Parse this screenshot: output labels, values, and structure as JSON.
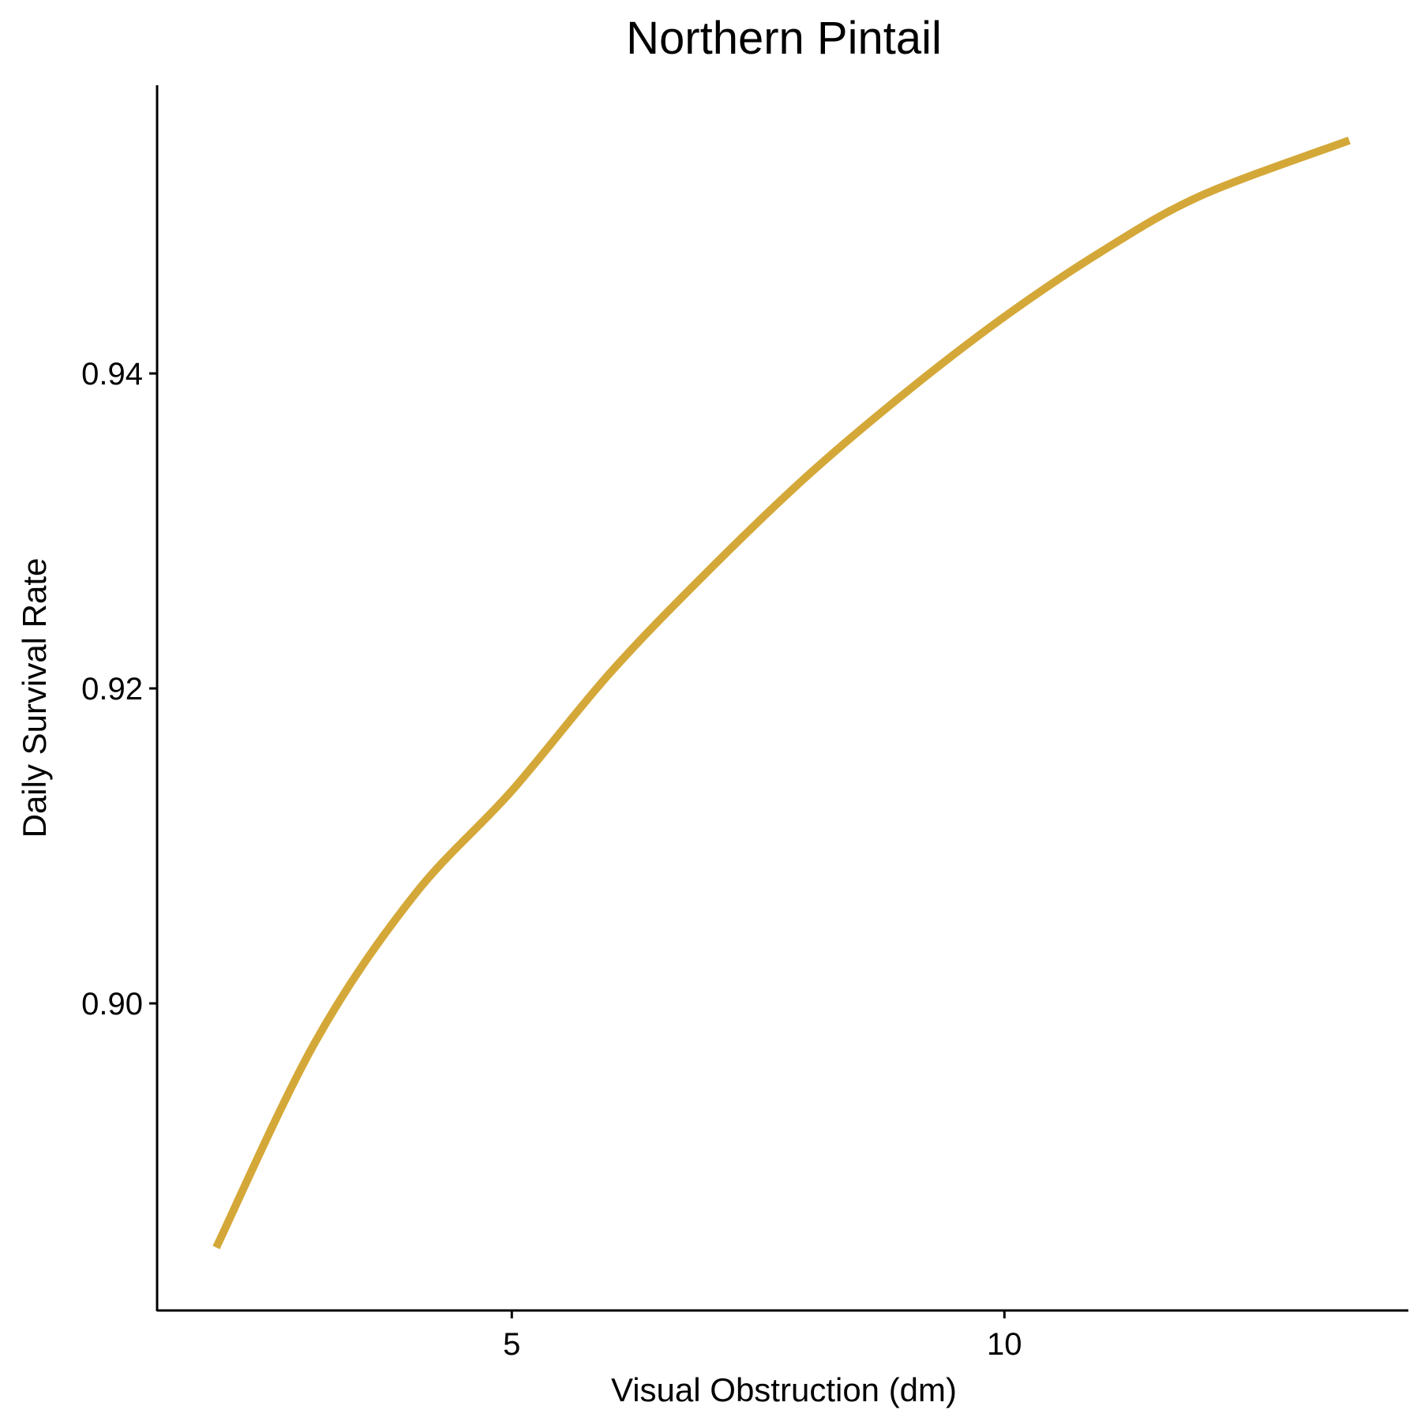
{
  "chart_data": {
    "type": "line",
    "title": "Northern Pintail",
    "xlabel": "Visual Obstruction (dm)",
    "ylabel": "Daily Survival Rate",
    "xlim": [
      1.4,
      14.1
    ],
    "ylim": [
      0.8805,
      0.9583
    ],
    "xticks": [
      5,
      10
    ],
    "xtick_labels": [
      "5",
      "10"
    ],
    "yticks": [
      0.9,
      0.92,
      0.94
    ],
    "ytick_labels": [
      "0.90",
      "0.92",
      "0.94"
    ],
    "grid": false,
    "legend": "none",
    "line_color": "#D4A838",
    "series": [
      {
        "x": [
          2.0,
          3.0,
          4.0,
          5.0,
          6.0,
          7.0,
          8.0,
          9.0,
          10.0,
          11.0,
          12.0,
          13.5
        ],
        "y": [
          0.8845,
          0.8975,
          0.9068,
          0.9135,
          0.921,
          0.9275,
          0.9335,
          0.9388,
          0.9436,
          0.9478,
          0.9513,
          0.9548
        ]
      }
    ]
  }
}
